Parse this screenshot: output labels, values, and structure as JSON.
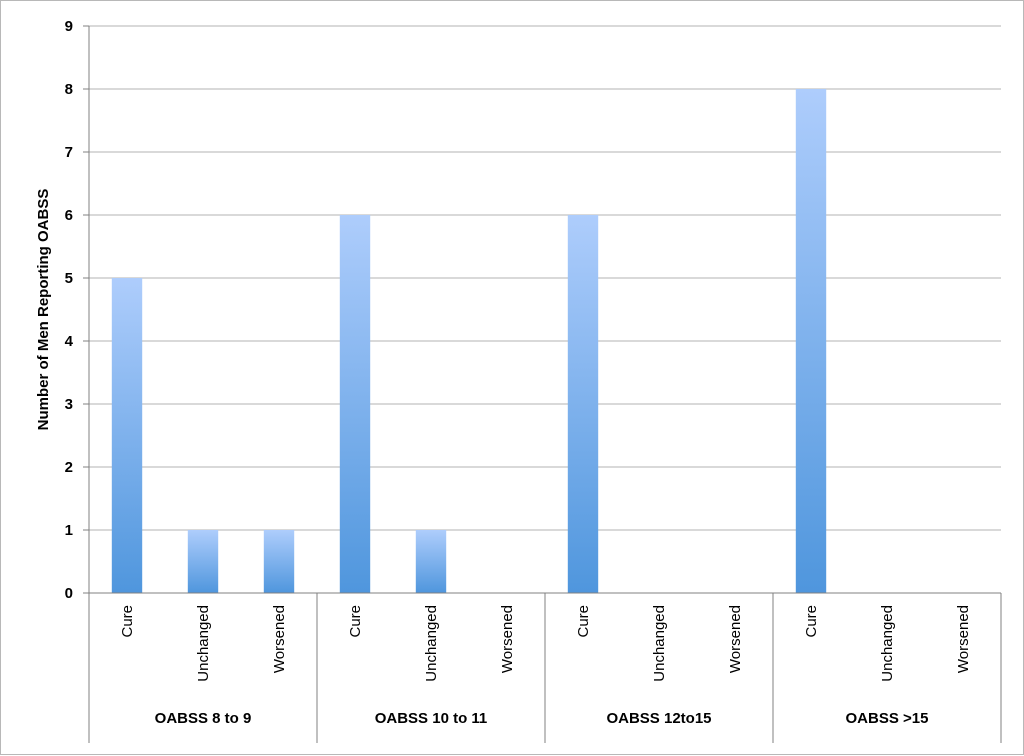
{
  "chart_data": {
    "type": "bar",
    "title": "",
    "xlabel": "",
    "ylabel": "Number of Men Reporting OABSS",
    "ylim": [
      0,
      9
    ],
    "yticks": [
      0,
      1,
      2,
      3,
      4,
      5,
      6,
      7,
      8,
      9
    ],
    "grid": true,
    "legend": "none",
    "bar_color_top": "#aecdfc",
    "bar_color_bottom": "#4f96dd",
    "groups": [
      {
        "label": "OABSS 8 to 9",
        "categories": [
          "Cure",
          "Unchanged",
          "Worsened"
        ],
        "values": [
          5,
          1,
          1
        ]
      },
      {
        "label": "OABSS 10 to 11",
        "categories": [
          "Cure",
          "Unchanged",
          "Worsened"
        ],
        "values": [
          6,
          1,
          0
        ]
      },
      {
        "label": "OABSS 12to15",
        "categories": [
          "Cure",
          "Unchanged",
          "Worsened"
        ],
        "values": [
          6,
          0,
          0
        ]
      },
      {
        "label": "OABSS >15",
        "categories": [
          "Cure",
          "Unchanged",
          "Worsened"
        ],
        "values": [
          8,
          0,
          0
        ]
      }
    ]
  }
}
